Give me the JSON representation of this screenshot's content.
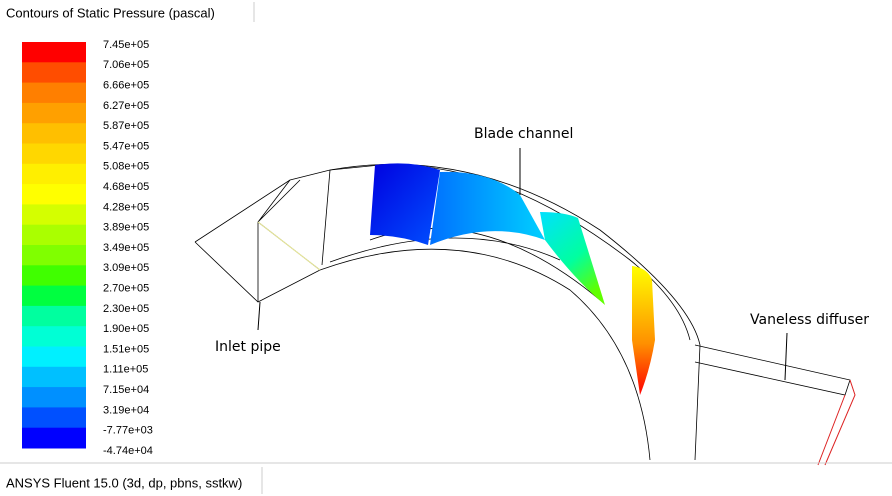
{
  "title": "Contours of Static Pressure (pascal)",
  "legend": {
    "labels": [
      "7.45e+05",
      "7.06e+05",
      "6.66e+05",
      "6.27e+05",
      "5.87e+05",
      "5.47e+05",
      "5.08e+05",
      "4.68e+05",
      "4.28e+05",
      "3.89e+05",
      "3.49e+05",
      "3.09e+05",
      "2.70e+05",
      "2.30e+05",
      "1.90e+05",
      "1.51e+05",
      "1.11e+05",
      "7.15e+04",
      "3.19e+04",
      "-7.77e+03",
      "-4.74e+04"
    ],
    "colors": [
      "#ff0000",
      "#ff4d00",
      "#ff7f00",
      "#ffa000",
      "#ffbf00",
      "#ffd700",
      "#ffef00",
      "#ffff00",
      "#d4ff00",
      "#aaff00",
      "#80ff00",
      "#40ff00",
      "#00ff40",
      "#00ff9f",
      "#00ffd5",
      "#00f0ff",
      "#00c0ff",
      "#0090ff",
      "#0050ff",
      "#0000ff"
    ]
  },
  "annotations": {
    "blade_channel": "Blade channel",
    "inlet_pipe": "Inlet pipe",
    "vaneless_diffuser": "Vaneless diffuser"
  },
  "footer": "ANSYS Fluent 15.0 (3d, dp, pbns, sstkw)"
}
